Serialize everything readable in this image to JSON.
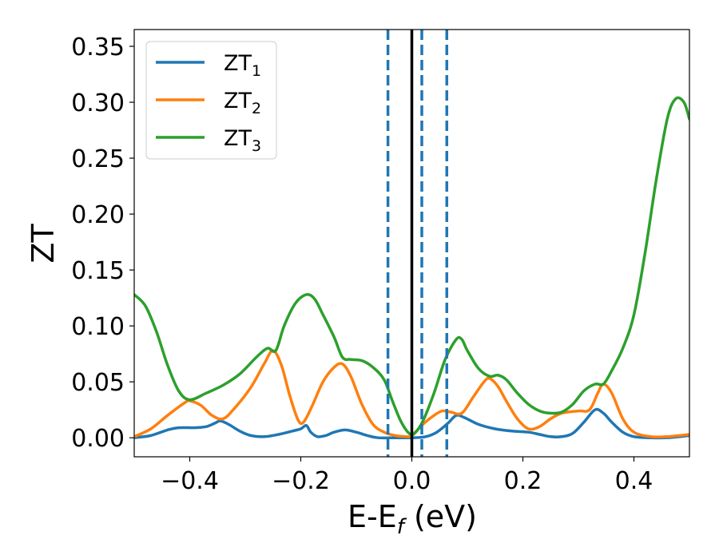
{
  "chart_data": {
    "type": "line",
    "title": "",
    "xlabel": "E-E",
    "xlabel_sub": "f",
    "xlabel_unit": " (eV)",
    "ylabel": "ZT",
    "xlim": [
      -0.5,
      0.5
    ],
    "ylim": [
      -0.017,
      0.365
    ],
    "xticks": [
      -0.4,
      -0.2,
      0.0,
      0.2,
      0.4
    ],
    "xtick_labels": [
      "−0.4",
      "−0.2",
      "0.0",
      "0.2",
      "0.4"
    ],
    "yticks": [
      0.0,
      0.05,
      0.1,
      0.15,
      0.2,
      0.25,
      0.3,
      0.35
    ],
    "ytick_labels": [
      "0.00",
      "0.05",
      "0.10",
      "0.15",
      "0.20",
      "0.25",
      "0.30",
      "0.35"
    ],
    "grid": false,
    "legend_position": "top-left",
    "vlines": [
      {
        "x": 0.0,
        "color": "#000000",
        "style": "solid"
      },
      {
        "x": -0.043,
        "color": "#1f77b4",
        "style": "dashed"
      },
      {
        "x": 0.018,
        "color": "#1f77b4",
        "style": "dashed"
      },
      {
        "x": 0.063,
        "color": "#1f77b4",
        "style": "dashed"
      }
    ],
    "series": [
      {
        "name": "ZT",
        "name_sub": "1",
        "color": "#1f77b4",
        "points": [
          [
            -0.5,
            0.0
          ],
          [
            -0.47,
            0.002
          ],
          [
            -0.44,
            0.007
          ],
          [
            -0.42,
            0.009
          ],
          [
            -0.39,
            0.009
          ],
          [
            -0.37,
            0.01
          ],
          [
            -0.355,
            0.013
          ],
          [
            -0.345,
            0.015
          ],
          [
            -0.33,
            0.012
          ],
          [
            -0.31,
            0.006
          ],
          [
            -0.29,
            0.002
          ],
          [
            -0.265,
            0.001
          ],
          [
            -0.24,
            0.003
          ],
          [
            -0.215,
            0.006
          ],
          [
            -0.2,
            0.008
          ],
          [
            -0.19,
            0.011
          ],
          [
            -0.182,
            0.005
          ],
          [
            -0.17,
            0.001
          ],
          [
            -0.155,
            0.002
          ],
          [
            -0.14,
            0.005
          ],
          [
            -0.12,
            0.007
          ],
          [
            -0.1,
            0.005
          ],
          [
            -0.08,
            0.002
          ],
          [
            -0.06,
            0.0
          ],
          [
            -0.03,
            0.0
          ],
          [
            0.0,
            0.0
          ],
          [
            0.025,
            0.001
          ],
          [
            0.045,
            0.005
          ],
          [
            0.065,
            0.013
          ],
          [
            0.08,
            0.02
          ],
          [
            0.095,
            0.018
          ],
          [
            0.12,
            0.012
          ],
          [
            0.15,
            0.008
          ],
          [
            0.18,
            0.006
          ],
          [
            0.21,
            0.005
          ],
          [
            0.23,
            0.003
          ],
          [
            0.25,
            0.001
          ],
          [
            0.27,
            0.001
          ],
          [
            0.29,
            0.004
          ],
          [
            0.31,
            0.014
          ],
          [
            0.33,
            0.025
          ],
          [
            0.345,
            0.022
          ],
          [
            0.36,
            0.014
          ],
          [
            0.38,
            0.005
          ],
          [
            0.4,
            0.001
          ],
          [
            0.43,
            0.0
          ],
          [
            0.46,
            0.0
          ],
          [
            0.5,
            0.002
          ]
        ]
      },
      {
        "name": "ZT",
        "name_sub": "2",
        "color": "#ff7f0e",
        "points": [
          [
            -0.5,
            0.001
          ],
          [
            -0.47,
            0.008
          ],
          [
            -0.44,
            0.02
          ],
          [
            -0.41,
            0.031
          ],
          [
            -0.4,
            0.033
          ],
          [
            -0.38,
            0.029
          ],
          [
            -0.36,
            0.02
          ],
          [
            -0.34,
            0.017
          ],
          [
            -0.32,
            0.026
          ],
          [
            -0.29,
            0.045
          ],
          [
            -0.265,
            0.067
          ],
          [
            -0.25,
            0.078
          ],
          [
            -0.235,
            0.065
          ],
          [
            -0.22,
            0.038
          ],
          [
            -0.205,
            0.016
          ],
          [
            -0.195,
            0.014
          ],
          [
            -0.18,
            0.028
          ],
          [
            -0.16,
            0.05
          ],
          [
            -0.14,
            0.063
          ],
          [
            -0.125,
            0.066
          ],
          [
            -0.11,
            0.055
          ],
          [
            -0.09,
            0.03
          ],
          [
            -0.07,
            0.012
          ],
          [
            -0.05,
            0.005
          ],
          [
            -0.03,
            0.002
          ],
          [
            -0.01,
            0.001
          ],
          [
            0.0,
            0.002
          ],
          [
            0.02,
            0.012
          ],
          [
            0.04,
            0.02
          ],
          [
            0.055,
            0.024
          ],
          [
            0.07,
            0.023
          ],
          [
            0.09,
            0.022
          ],
          [
            0.11,
            0.036
          ],
          [
            0.13,
            0.05
          ],
          [
            0.14,
            0.053
          ],
          [
            0.155,
            0.046
          ],
          [
            0.17,
            0.033
          ],
          [
            0.19,
            0.017
          ],
          [
            0.21,
            0.008
          ],
          [
            0.23,
            0.01
          ],
          [
            0.25,
            0.017
          ],
          [
            0.27,
            0.022
          ],
          [
            0.3,
            0.024
          ],
          [
            0.32,
            0.025
          ],
          [
            0.335,
            0.04
          ],
          [
            0.345,
            0.048
          ],
          [
            0.36,
            0.04
          ],
          [
            0.38,
            0.017
          ],
          [
            0.4,
            0.005
          ],
          [
            0.43,
            0.001
          ],
          [
            0.46,
            0.001
          ],
          [
            0.5,
            0.003
          ]
        ]
      },
      {
        "name": "ZT",
        "name_sub": "3",
        "color": "#2ca02c",
        "points": [
          [
            -0.5,
            0.128
          ],
          [
            -0.48,
            0.118
          ],
          [
            -0.46,
            0.095
          ],
          [
            -0.44,
            0.065
          ],
          [
            -0.42,
            0.042
          ],
          [
            -0.4,
            0.034
          ],
          [
            -0.37,
            0.04
          ],
          [
            -0.34,
            0.047
          ],
          [
            -0.31,
            0.057
          ],
          [
            -0.28,
            0.072
          ],
          [
            -0.26,
            0.08
          ],
          [
            -0.245,
            0.078
          ],
          [
            -0.23,
            0.1
          ],
          [
            -0.21,
            0.12
          ],
          [
            -0.19,
            0.128
          ],
          [
            -0.175,
            0.124
          ],
          [
            -0.16,
            0.11
          ],
          [
            -0.14,
            0.09
          ],
          [
            -0.125,
            0.072
          ],
          [
            -0.11,
            0.07
          ],
          [
            -0.09,
            0.069
          ],
          [
            -0.07,
            0.063
          ],
          [
            -0.05,
            0.052
          ],
          [
            -0.035,
            0.033
          ],
          [
            -0.02,
            0.015
          ],
          [
            -0.005,
            0.004
          ],
          [
            0.005,
            0.004
          ],
          [
            0.02,
            0.015
          ],
          [
            0.04,
            0.04
          ],
          [
            0.06,
            0.07
          ],
          [
            0.08,
            0.088
          ],
          [
            0.09,
            0.088
          ],
          [
            0.1,
            0.078
          ],
          [
            0.12,
            0.062
          ],
          [
            0.14,
            0.055
          ],
          [
            0.155,
            0.056
          ],
          [
            0.17,
            0.052
          ],
          [
            0.19,
            0.04
          ],
          [
            0.21,
            0.03
          ],
          [
            0.23,
            0.024
          ],
          [
            0.25,
            0.022
          ],
          [
            0.27,
            0.023
          ],
          [
            0.29,
            0.03
          ],
          [
            0.31,
            0.042
          ],
          [
            0.33,
            0.048
          ],
          [
            0.345,
            0.048
          ],
          [
            0.36,
            0.06
          ],
          [
            0.38,
            0.08
          ],
          [
            0.4,
            0.11
          ],
          [
            0.42,
            0.165
          ],
          [
            0.44,
            0.23
          ],
          [
            0.46,
            0.285
          ],
          [
            0.475,
            0.303
          ],
          [
            0.49,
            0.3
          ],
          [
            0.5,
            0.285
          ]
        ]
      }
    ]
  }
}
